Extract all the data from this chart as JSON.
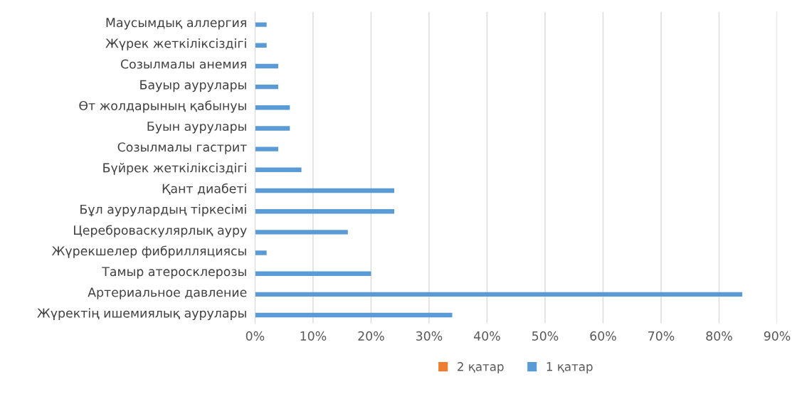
{
  "chart_data": {
    "type": "bar",
    "orientation": "horizontal",
    "categories": [
      "Маусымдық аллергия",
      "Жүрек жеткіліксіздігі",
      "Созылмалы анемия",
      "Бауыр аурулары",
      "Өт жолдарының қабынуы",
      "Буын аурулары",
      "Созылмалы гастрит",
      "Бүйрек жеткіліксіздігі",
      "Қант диабеті",
      "Бұл аурулардың тіркесімі",
      "Цереброваскулярлық ауру",
      "Жүрекшелер фибрилляциясы",
      "Тамыр атеросклерозы",
      "Артериальное давление",
      "Жүректің ишемиялық аурулары"
    ],
    "series": [
      {
        "name": "2 қатар",
        "color": "#ed7d31",
        "values": [
          0,
          0,
          0,
          0,
          0,
          0,
          0,
          0,
          0,
          0,
          0,
          0,
          0,
          0,
          0
        ]
      },
      {
        "name": "1 қатар",
        "color": "#5b9bd5",
        "values": [
          2,
          2,
          4,
          4,
          6,
          6,
          4,
          8,
          24,
          24,
          16,
          2,
          20,
          84,
          34
        ]
      }
    ],
    "xlim": [
      0,
      90
    ],
    "xticks": [
      {
        "value": 0,
        "label": "0%"
      },
      {
        "value": 10,
        "label": "10%"
      },
      {
        "value": 20,
        "label": "20%"
      },
      {
        "value": 30,
        "label": "30%"
      },
      {
        "value": 40,
        "label": "40%"
      },
      {
        "value": 50,
        "label": "50%"
      },
      {
        "value": 60,
        "label": "60%"
      },
      {
        "value": 70,
        "label": "70%"
      },
      {
        "value": 80,
        "label": "80%"
      },
      {
        "value": 90,
        "label": "90%"
      }
    ],
    "grid": "x",
    "legend": "bottom"
  }
}
